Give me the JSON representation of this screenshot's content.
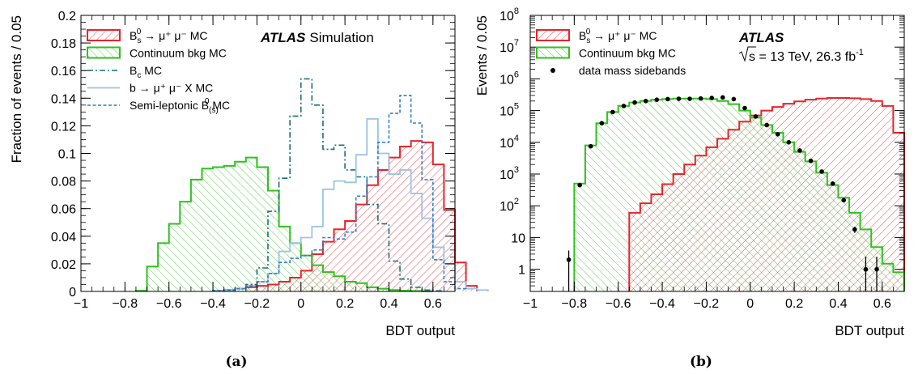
{
  "chart_data": [
    {
      "type": "histogram",
      "panel_label": "(a)",
      "xlabel": "BDT output",
      "ylabel": "Fraction of events / 0.05",
      "xlim": [
        -1,
        0.7
      ],
      "ylim": [
        0,
        0.2
      ],
      "y_scale": "linear",
      "x_ticks": [
        -1,
        -0.8,
        -0.6,
        -0.4,
        -0.2,
        0,
        0.2,
        0.4,
        0.6
      ],
      "y_ticks": [
        0,
        0.02,
        0.04,
        0.06,
        0.08,
        0.1,
        0.12,
        0.14,
        0.16,
        0.18,
        0.2
      ],
      "x_tick_labels": [
        "−1",
        "−0.8",
        "−0.6",
        "−0.4",
        "−0.2",
        "0",
        "0.2",
        "0.4",
        "0.6"
      ],
      "y_tick_labels": [
        "0",
        "0.02",
        "0.04",
        "0.06",
        "0.08",
        "0.1",
        "0.12",
        "0.14",
        "0.16",
        "0.18",
        "0.2"
      ],
      "atlas_text": "ATLAS",
      "atlas_sub": "Simulation",
      "bin_width": 0.05,
      "legend_position": "top-left",
      "series": [
        {
          "name": "B_s^0 → μ⁺ μ⁻ MC",
          "legend_main": "B",
          "legend_sub": "s",
          "legend_sup": "0",
          "legend_rest": " → μ⁺ μ⁻ MC",
          "style": "hatch-red",
          "color": "#e8242c",
          "x_start": -0.4,
          "values": [
            0.0005,
            0.001,
            0.002,
            0.003,
            0.004,
            0.005,
            0.007,
            0.01,
            0.015,
            0.027,
            0.036,
            0.045,
            0.051,
            0.063,
            0.077,
            0.088,
            0.097,
            0.105,
            0.109,
            0.108,
            0.092,
            0.059,
            0.021,
            0.004
          ]
        },
        {
          "name": "Continuum bkg MC",
          "style": "hatch-green",
          "color": "#2fc21d",
          "x_start": -0.75,
          "values": [
            0.0005,
            0.018,
            0.035,
            0.049,
            0.065,
            0.081,
            0.089,
            0.09,
            0.091,
            0.094,
            0.097,
            0.09,
            0.073,
            0.047,
            0.035,
            0.026,
            0.019,
            0.014,
            0.011,
            0.007,
            0.006,
            0.003,
            0.002,
            0.001,
            0.0005,
            0.0003,
            0.0001
          ]
        },
        {
          "name": "B_c MC",
          "legend_main": "B",
          "legend_sub": "c",
          "legend_sup": "",
          "legend_rest": " MC",
          "style": "dash-dot",
          "color": "#1a6f7a",
          "x_start": -0.4,
          "values": [
            0.0005,
            0.001,
            0.002,
            0.005,
            0.017,
            0.058,
            0.082,
            0.127,
            0.154,
            0.135,
            0.103,
            0.106,
            0.088,
            0.083,
            0.063,
            0.049,
            0.022,
            0.009,
            0.003,
            0.001,
            0.0005
          ]
        },
        {
          "name": "b → μ⁺ μ⁻ X MC",
          "style": "solid-light",
          "color": "#9cc3e6",
          "x_start": -0.4,
          "values": [
            0.0005,
            0.001,
            0.002,
            0.004,
            0.007,
            0.013,
            0.029,
            0.035,
            0.039,
            0.047,
            0.074,
            0.08,
            0.079,
            0.099,
            0.125,
            0.1,
            0.085,
            0.088,
            0.071,
            0.053,
            0.032,
            0.02,
            0.007,
            0.002,
            0.001
          ]
        },
        {
          "name": "Semi-leptonic B_(s)^0 MC",
          "legend_main": "Semi-leptonic B",
          "legend_sub": "(s)",
          "legend_sup": "0",
          "legend_rest": " MC",
          "style": "dashed",
          "color": "#2f7fd1",
          "x_start": -0.4,
          "values": [
            0.0005,
            0.001,
            0.002,
            0.004,
            0.007,
            0.013,
            0.021,
            0.024,
            0.026,
            0.03,
            0.039,
            0.038,
            0.043,
            0.069,
            0.083,
            0.108,
            0.129,
            0.142,
            0.122,
            0.081,
            0.023,
            0.007,
            0.002
          ]
        }
      ]
    },
    {
      "type": "histogram",
      "panel_label": "(b)",
      "xlabel": "BDT output",
      "ylabel": "Events / 0.05",
      "xlim": [
        -1,
        0.7
      ],
      "ylim": [
        0.2,
        100000000
      ],
      "y_scale": "log",
      "x_ticks": [
        -1,
        -0.8,
        -0.6,
        -0.4,
        -0.2,
        0,
        0.2,
        0.4,
        0.6
      ],
      "x_tick_labels": [
        "−1",
        "−0.8",
        "−0.6",
        "−0.4",
        "−0.2",
        "0",
        "0.2",
        "0.4",
        "0.6"
      ],
      "y_ticks": [
        1,
        10,
        100,
        1000,
        10000,
        100000,
        1000000,
        10000000,
        100000000
      ],
      "y_tick_labels": [
        {
          "base": "1",
          "exp": ""
        },
        {
          "base": "10",
          "exp": ""
        },
        {
          "base": "10",
          "exp": "2"
        },
        {
          "base": "10",
          "exp": "3"
        },
        {
          "base": "10",
          "exp": "4"
        },
        {
          "base": "10",
          "exp": "5"
        },
        {
          "base": "10",
          "exp": "6"
        },
        {
          "base": "10",
          "exp": "7"
        },
        {
          "base": "10",
          "exp": "8"
        }
      ],
      "atlas_text": "ATLAS",
      "energy_text_main": "s = 13 TeV, 26.3 fb",
      "energy_text_sup": "-1",
      "bin_width": 0.05,
      "legend_position": "top-left",
      "series": [
        {
          "name": "B_s^0 → μ⁺ μ⁻ MC",
          "legend_main": "B",
          "legend_sub": "s",
          "legend_sup": "0",
          "legend_rest": " → μ⁺ μ⁻ MC",
          "style": "hatch-red",
          "color": "#e8242c",
          "x_start": -0.55,
          "values": [
            60,
            120,
            230,
            480,
            1000,
            2000,
            3800,
            7000,
            13000,
            25000,
            45000,
            70000,
            100000,
            130000,
            165000,
            195000,
            220000,
            240000,
            250000,
            250000,
            245000,
            230000,
            200000,
            140000,
            20000
          ]
        },
        {
          "name": "Continuum bkg MC",
          "style": "hatch-green",
          "color": "#2fc21d",
          "x_start": -0.8,
          "values": [
            500,
            8000,
            40000,
            90000,
            140000,
            180000,
            200000,
            220000,
            230000,
            240000,
            240000,
            240000,
            230000,
            200000,
            160000,
            100000,
            60000,
            35000,
            20000,
            10000,
            5000,
            2500,
            1100,
            450,
            180,
            60,
            18,
            5,
            1.5,
            0.8
          ]
        },
        {
          "name": "data mass sidebands",
          "style": "points",
          "color": "#000000",
          "x": [
            -0.825,
            -0.775,
            -0.725,
            -0.675,
            -0.625,
            -0.575,
            -0.525,
            -0.475,
            -0.425,
            -0.375,
            -0.325,
            -0.275,
            -0.225,
            -0.175,
            -0.125,
            -0.075,
            -0.025,
            0.025,
            0.075,
            0.125,
            0.175,
            0.225,
            0.275,
            0.325,
            0.375,
            0.425,
            0.475,
            0.525,
            0.575
          ],
          "y": [
            2,
            450,
            7500,
            40000,
            90000,
            140000,
            180000,
            200000,
            220000,
            230000,
            235000,
            235000,
            240000,
            250000,
            260000,
            230000,
            120000,
            65000,
            35000,
            18000,
            10000,
            5500,
            2600,
            1200,
            500,
            150,
            18,
            1,
            1
          ],
          "err_low": [
            1.9,
            20,
            90,
            200,
            300,
            370,
            420,
            440,
            470,
            480,
            480,
            480,
            490,
            500,
            510,
            480,
            350,
            250,
            190,
            130,
            100,
            75,
            50,
            35,
            22,
            12,
            4,
            0.9,
            0.9
          ],
          "err_high": [
            1.9,
            20,
            90,
            200,
            300,
            370,
            420,
            440,
            470,
            480,
            480,
            480,
            490,
            500,
            510,
            480,
            350,
            250,
            190,
            130,
            100,
            75,
            50,
            35,
            22,
            12,
            4,
            1.5,
            1.5
          ]
        }
      ]
    }
  ]
}
